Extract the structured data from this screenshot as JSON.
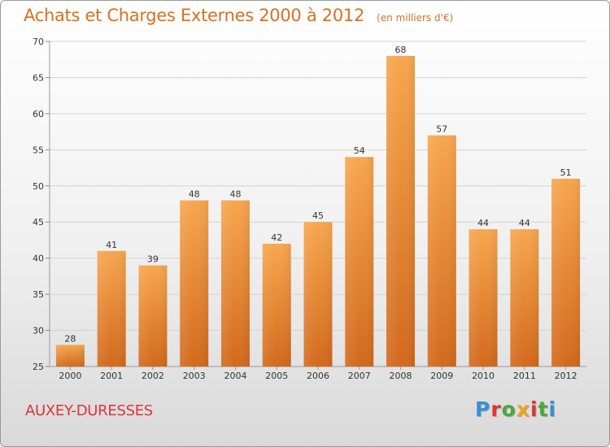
{
  "header": {
    "title": "Achats et Charges Externes 2000 à 2012",
    "unit_note": "(en milliers d'€)"
  },
  "footer": {
    "place": "AUXEY-DURESSES",
    "brand": {
      "text": "Proxiti",
      "letter_colors": [
        "#3a8fd6",
        "#e0352f",
        "#4aa83b",
        "#f0a21a",
        "#e0352f",
        "#4aa83b",
        "#3a8fd6"
      ]
    }
  },
  "colors": {
    "bar_light": "#f7a64f",
    "bar_dark": "#d2691c",
    "title": "#d9701f",
    "place": "#d9363a"
  },
  "chart_data": {
    "type": "bar",
    "title": "Achats et Charges Externes 2000 à 2012",
    "subtitle": "(en milliers d'€)",
    "xlabel": "",
    "ylabel": "",
    "categories": [
      "2000",
      "2001",
      "2002",
      "2003",
      "2004",
      "2005",
      "2006",
      "2007",
      "2008",
      "2009",
      "2010",
      "2011",
      "2012"
    ],
    "values": [
      28,
      41,
      39,
      48,
      48,
      42,
      45,
      54,
      68,
      57,
      44,
      44,
      51
    ],
    "ylim": [
      25,
      70
    ],
    "yticks": [
      25,
      30,
      35,
      40,
      45,
      50,
      55,
      60,
      65,
      70
    ],
    "grid": true,
    "legend": "none"
  }
}
